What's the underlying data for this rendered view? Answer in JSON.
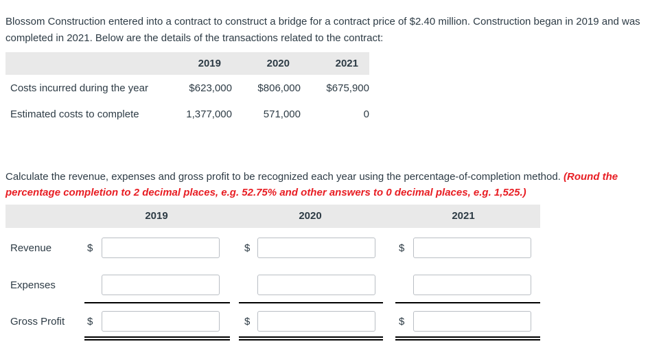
{
  "problem": {
    "intro": "Blossom Construction entered into a contract to construct a bridge for a contract price of $2.40 million. Construction began in 2019 and was completed in 2021. Below are the details of the transactions related to the contract:",
    "instruction_main": "Calculate the revenue, expenses and gross profit to be recognized each year using the percentage-of-completion method. ",
    "instruction_note": "(Round the percentage completion to 2 decimal places, e.g. 52.75% and other answers to 0 decimal places, e.g. 1,525.)"
  },
  "data_table": {
    "years": [
      "2019",
      "2020",
      "2021"
    ],
    "rows": [
      {
        "label": "Costs incurred during the year",
        "values": [
          "$623,000",
          "$806,000",
          "$675,900"
        ]
      },
      {
        "label": "Estimated costs to complete",
        "values": [
          "1,377,000",
          "571,000",
          "0"
        ]
      }
    ]
  },
  "answer_table": {
    "years": [
      "2019",
      "2020",
      "2021"
    ],
    "currency_symbol": "$",
    "rows": [
      {
        "label": "Revenue",
        "has_dollar": true
      },
      {
        "label": "Expenses",
        "has_dollar": false
      },
      {
        "label": "Gross Profit",
        "has_dollar": true
      }
    ],
    "inputs_per_row": 3,
    "input_values": [
      "",
      "",
      "",
      "",
      "",
      "",
      "",
      "",
      ""
    ]
  },
  "colors": {
    "ink": "#2d3b45",
    "note_red": "#e81d23",
    "table_header_bg": "#e9e9e9",
    "input_border": "#b9bec4",
    "total_line": "#000000"
  }
}
